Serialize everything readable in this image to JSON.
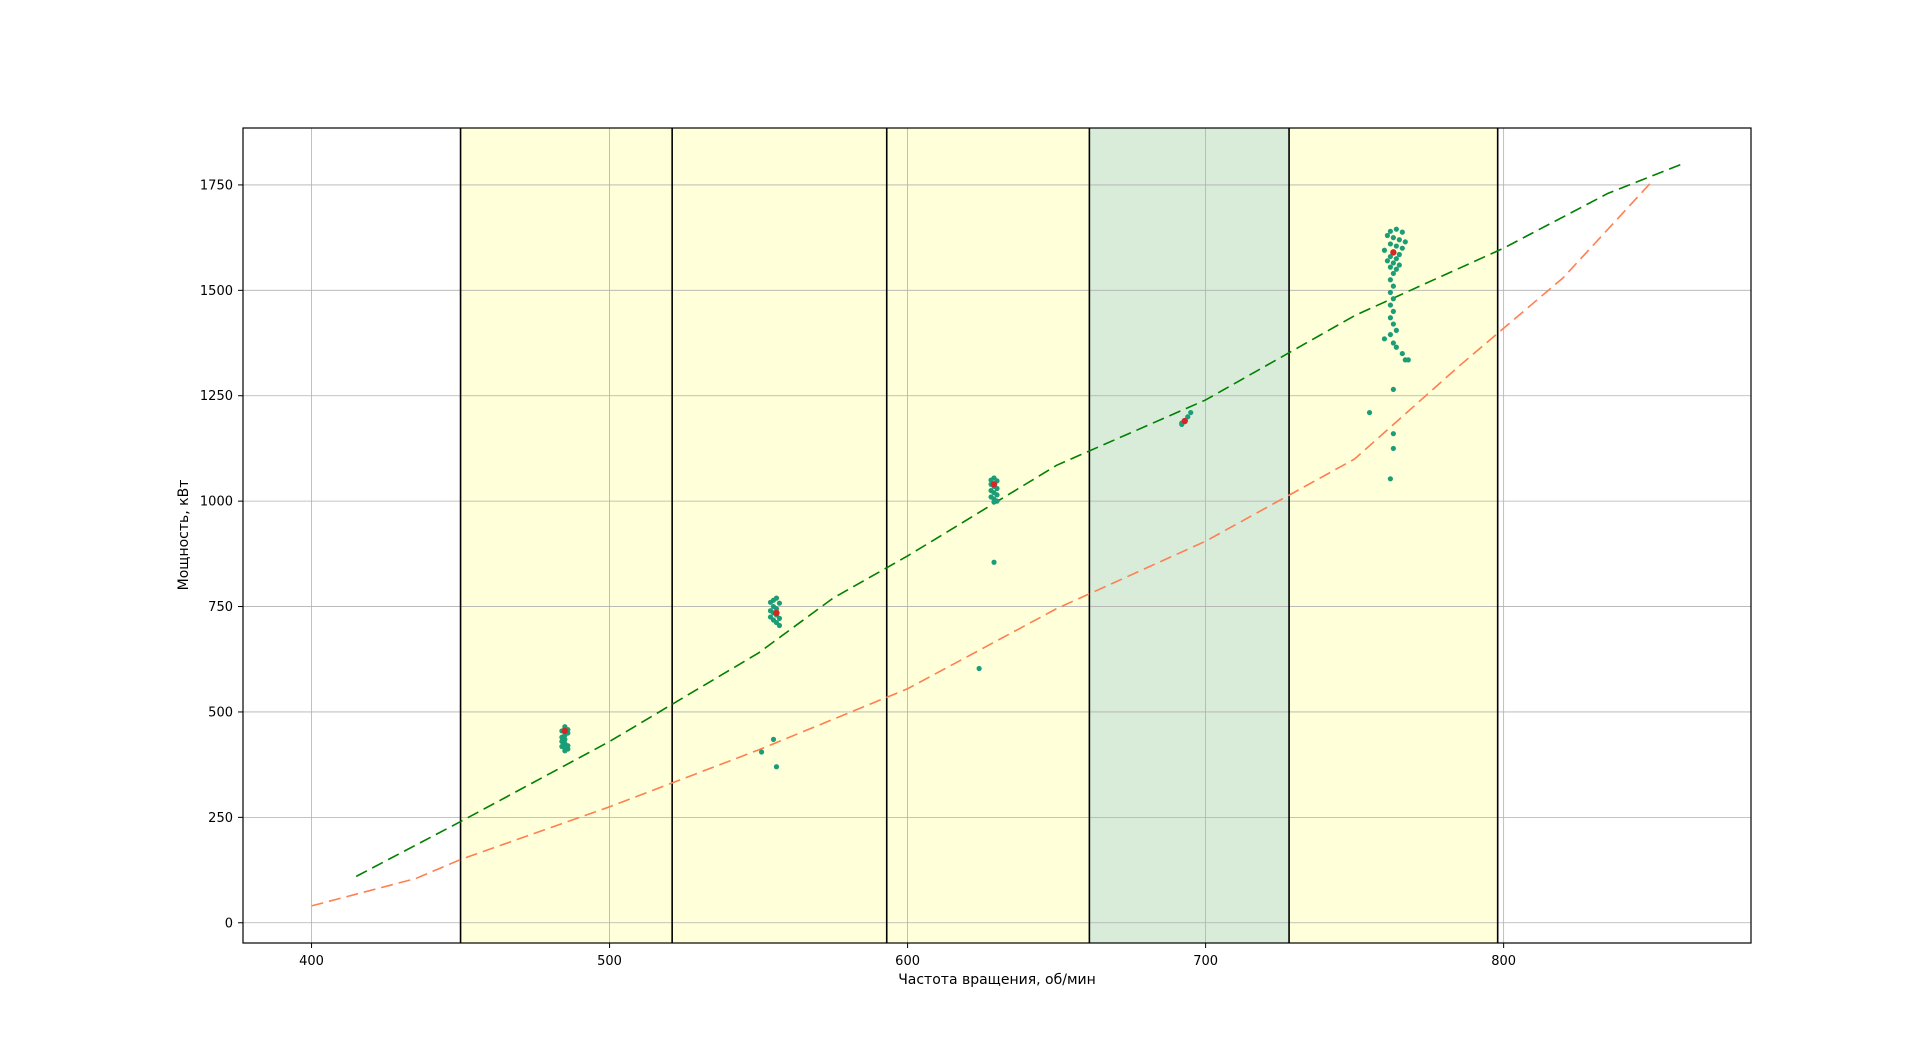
{
  "chart_data": {
    "type": "scatter",
    "title": "",
    "xlabel": "Частота вращения, об/мин",
    "ylabel": "Мощность, кВт",
    "xlim": [
      377,
      883
    ],
    "ylim": [
      -48,
      1885
    ],
    "xticks": [
      400,
      500,
      600,
      700,
      800
    ],
    "yticks": [
      0,
      250,
      500,
      750,
      1000,
      1250,
      1500,
      1750
    ],
    "grid": true,
    "legend": "none",
    "bands": [
      {
        "x0": 450,
        "x1": 521,
        "color": "#ffffd9"
      },
      {
        "x0": 521,
        "x1": 593,
        "color": "#ffffd9"
      },
      {
        "x0": 593,
        "x1": 661,
        "color": "#ffffd9"
      },
      {
        "x0": 661,
        "x1": 728,
        "color": "#d9ecda"
      },
      {
        "x0": 728,
        "x1": 798,
        "color": "#ffffd9"
      }
    ],
    "vlines": [
      450,
      521,
      593,
      661,
      728,
      798
    ],
    "curves": [
      {
        "color": "#008000",
        "style": "dashed",
        "x": [
          415,
          450,
          500,
          550,
          575,
          600,
          650,
          700,
          750,
          800,
          835,
          860
        ],
        "y": [
          110,
          240,
          430,
          640,
          770,
          870,
          1085,
          1240,
          1440,
          1600,
          1730,
          1800
        ]
      },
      {
        "color": "#ff7f50",
        "style": "dashed",
        "x": [
          400,
          435,
          450,
          500,
          550,
          600,
          650,
          700,
          750,
          785,
          800,
          820,
          850
        ],
        "y": [
          40,
          105,
          150,
          275,
          410,
          555,
          745,
          905,
          1100,
          1320,
          1410,
          1530,
          1760
        ]
      }
    ],
    "scatter": {
      "color": "#1b9e77",
      "points": [
        [
          485,
          465
        ],
        [
          485,
          460
        ],
        [
          486,
          458
        ],
        [
          484,
          455
        ],
        [
          486,
          450
        ],
        [
          485,
          445
        ],
        [
          484,
          440
        ],
        [
          485,
          435
        ],
        [
          484,
          430
        ],
        [
          485,
          425
        ],
        [
          486,
          420
        ],
        [
          484,
          418
        ],
        [
          485,
          415
        ],
        [
          486,
          412
        ],
        [
          485,
          408
        ],
        [
          555,
          765
        ],
        [
          556,
          770
        ],
        [
          554,
          760
        ],
        [
          557,
          758
        ],
        [
          555,
          750
        ],
        [
          556,
          745
        ],
        [
          554,
          740
        ],
        [
          555,
          735
        ],
        [
          556,
          730
        ],
        [
          554,
          725
        ],
        [
          557,
          722
        ],
        [
          555,
          718
        ],
        [
          556,
          712
        ],
        [
          557,
          705
        ],
        [
          555,
          435
        ],
        [
          551,
          405
        ],
        [
          556,
          370
        ],
        [
          628,
          1050
        ],
        [
          629,
          1055
        ],
        [
          630,
          1048
        ],
        [
          628,
          1040
        ],
        [
          629,
          1035
        ],
        [
          630,
          1030
        ],
        [
          628,
          1025
        ],
        [
          629,
          1020
        ],
        [
          630,
          1015
        ],
        [
          628,
          1010
        ],
        [
          629,
          1005
        ],
        [
          630,
          1000
        ],
        [
          629,
          998
        ],
        [
          629,
          855
        ],
        [
          624,
          603
        ],
        [
          692,
          1185
        ],
        [
          693,
          1190
        ],
        [
          694,
          1200
        ],
        [
          695,
          1210
        ],
        [
          692,
          1182
        ],
        [
          762,
          1640
        ],
        [
          764,
          1645
        ],
        [
          766,
          1638
        ],
        [
          761,
          1630
        ],
        [
          763,
          1625
        ],
        [
          765,
          1620
        ],
        [
          767,
          1615
        ],
        [
          762,
          1610
        ],
        [
          764,
          1605
        ],
        [
          766,
          1600
        ],
        [
          760,
          1595
        ],
        [
          763,
          1590
        ],
        [
          765,
          1585
        ],
        [
          762,
          1580
        ],
        [
          764,
          1575
        ],
        [
          761,
          1570
        ],
        [
          763,
          1565
        ],
        [
          765,
          1560
        ],
        [
          762,
          1555
        ],
        [
          764,
          1550
        ],
        [
          763,
          1540
        ],
        [
          762,
          1525
        ],
        [
          763,
          1510
        ],
        [
          762,
          1495
        ],
        [
          763,
          1480
        ],
        [
          762,
          1465
        ],
        [
          763,
          1450
        ],
        [
          762,
          1435
        ],
        [
          763,
          1420
        ],
        [
          764,
          1405
        ],
        [
          762,
          1395
        ],
        [
          760,
          1385
        ],
        [
          763,
          1375
        ],
        [
          764,
          1365
        ],
        [
          766,
          1350
        ],
        [
          767,
          1335
        ],
        [
          768,
          1335
        ],
        [
          763,
          1265
        ],
        [
          755,
          1210
        ],
        [
          763,
          1160
        ],
        [
          763,
          1125
        ],
        [
          762,
          1053
        ]
      ]
    },
    "means": {
      "color": "#d62728",
      "points": [
        [
          485,
          455
        ],
        [
          556,
          735
        ],
        [
          629,
          1040
        ],
        [
          693,
          1190
        ],
        [
          763,
          1590
        ]
      ]
    }
  }
}
